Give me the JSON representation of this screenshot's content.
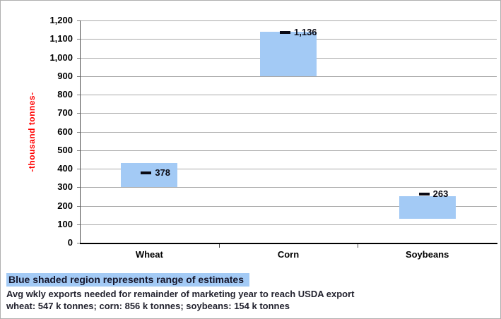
{
  "chart_data": {
    "type": "bar",
    "variant": "floating-range-bars-with-value-markers",
    "categories": [
      "Wheat",
      "Corn",
      "Soybeans"
    ],
    "series": [
      {
        "name": "range_low",
        "values": [
          300,
          900,
          130
        ]
      },
      {
        "name": "range_high",
        "values": [
          430,
          1140,
          250
        ]
      },
      {
        "name": "marker",
        "values": [
          378,
          1136,
          263
        ]
      }
    ],
    "marker_labels": [
      "378",
      "1,136",
      "263"
    ],
    "title": "",
    "xlabel": "",
    "ylabel": "-thousand tonnes-",
    "ylim": [
      0,
      1200
    ],
    "ytick_step": 100,
    "yticks": [
      "0",
      "100",
      "200",
      "300",
      "400",
      "500",
      "600",
      "700",
      "800",
      "900",
      "1,000",
      "1,100",
      "1,200"
    ],
    "grid": true,
    "legend_position": "none",
    "bar_color": "#a3caf5",
    "marker_color": "#0a0a14",
    "axis_title_color": "#ff0000",
    "gridline_color": "#a9a9a9"
  },
  "footer": {
    "legend_note": "Blue shaded region represents range of estimates",
    "legend_note_highlight_color": "#a3caf5",
    "note_line1": "Avg wkly exports needed for remainder of marketing year to reach USDA export",
    "note_line2": "wheat: 547 k tonnes; corn: 856 k tonnes; soybeans: 154 k tonnes"
  }
}
